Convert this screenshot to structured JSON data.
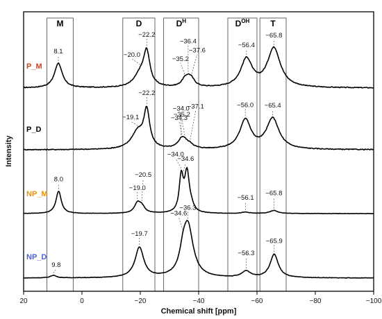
{
  "chart_data": {
    "type": "line",
    "xlabel": "Chemical shift [ppm]",
    "ylabel": "Intensity",
    "xlim": [
      20,
      -100
    ],
    "x_reversed": true,
    "xticks": [
      "20",
      "0",
      "−20",
      "−40",
      "−60",
      "−80",
      "−100"
    ],
    "xtick_values": [
      20,
      0,
      -20,
      -40,
      -60,
      -80,
      -100
    ],
    "regions": [
      {
        "label": "M",
        "sup": "",
        "range": [
          12,
          3
        ]
      },
      {
        "label": "D",
        "sup": "",
        "range": [
          -14,
          -25
        ]
      },
      {
        "label": "D",
        "sup": "H",
        "range": [
          -28,
          -40
        ]
      },
      {
        "label": "D",
        "sup": "OH",
        "range": [
          -50,
          -60
        ]
      },
      {
        "label": "T",
        "sup": "",
        "range": [
          -61,
          -70
        ]
      }
    ],
    "series": [
      {
        "name": "P_M",
        "color": "#d0431b",
        "peaks": [
          {
            "x": 8.1,
            "h": 0.55,
            "w": 1.6,
            "label": "8.1"
          },
          {
            "x": -20.0,
            "h": 0.28,
            "w": 2.5,
            "label": "−20.0"
          },
          {
            "x": -22.2,
            "h": 0.72,
            "w": 1.3,
            "label": "−22.2"
          },
          {
            "x": -35.2,
            "h": 0.12,
            "w": 1.4,
            "label": "−35.2"
          },
          {
            "x": -36.4,
            "h": 0.14,
            "w": 1.4,
            "label": "−36.4"
          },
          {
            "x": -37.6,
            "h": 0.13,
            "w": 1.4,
            "label": "−37.6"
          },
          {
            "x": -56.4,
            "h": 0.62,
            "w": 2.4,
            "label": "−56.4"
          },
          {
            "x": -65.8,
            "h": 0.87,
            "w": 2.7,
            "label": "−65.8"
          }
        ]
      },
      {
        "name": "P_D",
        "color": "#000000",
        "peaks": [
          {
            "x": -19.1,
            "h": 0.38,
            "w": 2.6,
            "label": "−19.1"
          },
          {
            "x": -22.2,
            "h": 0.8,
            "w": 1.2,
            "label": "−22.2"
          },
          {
            "x": -34.0,
            "h": 0.12,
            "w": 1.6,
            "label": "−34.0"
          },
          {
            "x": -34.3,
            "h": 0.06,
            "w": 1.3,
            "label": "−34.3"
          },
          {
            "x": -35.2,
            "h": 0.1,
            "w": 1.4,
            "label": "−35.2"
          },
          {
            "x": -37.1,
            "h": 0.08,
            "w": 1.5,
            "label": "−37.1"
          },
          {
            "x": -56.0,
            "h": 0.65,
            "w": 2.3,
            "label": "−56.0"
          },
          {
            "x": -65.4,
            "h": 0.68,
            "w": 2.6,
            "label": "−65.4"
          }
        ]
      },
      {
        "name": "NP_M",
        "color": "#e8920c",
        "peaks": [
          {
            "x": 8.0,
            "h": 0.52,
            "w": 1.1,
            "label": "8.0"
          },
          {
            "x": -19.0,
            "h": 0.22,
            "w": 1.2,
            "label": "−19.0"
          },
          {
            "x": -20.5,
            "h": 0.15,
            "w": 1.3,
            "label": "−20.5"
          },
          {
            "x": -34.0,
            "h": 0.78,
            "w": 0.8,
            "label": "−34.0"
          },
          {
            "x": -34.6,
            "h": 0.05,
            "w": 0.8,
            "label": "−34.6"
          },
          {
            "x": -36.0,
            "h": 0.92,
            "w": 1.0,
            "label": ""
          },
          {
            "x": -37.5,
            "h": 0.1,
            "w": 1.0,
            "label": ""
          },
          {
            "x": -56.1,
            "h": 0.03,
            "w": 1.5,
            "label": "−56.1"
          },
          {
            "x": -65.8,
            "h": 0.07,
            "w": 1.6,
            "label": "−65.8"
          }
        ]
      },
      {
        "name": "NP_D",
        "color": "#4a5ed8",
        "peaks": [
          {
            "x": 9.8,
            "h": 0.05,
            "w": 1.2,
            "label": "9.8"
          },
          {
            "x": -19.7,
            "h": 0.58,
            "w": 1.8,
            "label": "−19.7"
          },
          {
            "x": -34.6,
            "h": 0.25,
            "w": 1.3,
            "label": "−34.6"
          },
          {
            "x": -36.3,
            "h": 1.0,
            "w": 2.2,
            "label": "−36.3"
          },
          {
            "x": -56.3,
            "h": 0.12,
            "w": 1.8,
            "label": "−56.3"
          },
          {
            "x": -65.9,
            "h": 0.45,
            "w": 1.7,
            "label": "−65.9"
          }
        ]
      }
    ],
    "grid": false,
    "legend": "none"
  }
}
